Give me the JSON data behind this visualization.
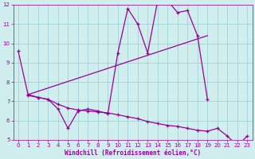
{
  "x": [
    0,
    1,
    2,
    3,
    4,
    5,
    6,
    7,
    8,
    9,
    10,
    11,
    12,
    13,
    14,
    15,
    16,
    17,
    18,
    19,
    20,
    21,
    22,
    23
  ],
  "line1": [
    9.6,
    7.3,
    7.2,
    7.1,
    6.6,
    5.6,
    6.5,
    6.6,
    6.5,
    6.35,
    9.5,
    11.8,
    11.0,
    9.5,
    12.2,
    12.2,
    11.6,
    11.7,
    10.4,
    7.1,
    null,
    null,
    null,
    null
  ],
  "line2_x": [
    1,
    19
  ],
  "line2_y": [
    7.35,
    10.4
  ],
  "line3": [
    null,
    7.35,
    7.2,
    7.1,
    6.85,
    6.65,
    6.55,
    6.5,
    6.45,
    6.4,
    6.3,
    6.2,
    6.1,
    5.95,
    5.85,
    5.75,
    5.7,
    5.6,
    5.5,
    5.45,
    5.6,
    5.2,
    4.7,
    5.2
  ],
  "line_color": "#990099",
  "bg_color": "#d0eeee",
  "grid_color": "#99cccc",
  "xlabel": "Windchill (Refroidissement éolien,°C)",
  "ylim": [
    5,
    12
  ],
  "xlim": [
    -0.5,
    23.5
  ],
  "yticks": [
    5,
    6,
    7,
    8,
    9,
    10,
    11,
    12
  ],
  "xticks": [
    0,
    1,
    2,
    3,
    4,
    5,
    6,
    7,
    8,
    9,
    10,
    11,
    12,
    13,
    14,
    15,
    16,
    17,
    18,
    19,
    20,
    21,
    22,
    23
  ]
}
